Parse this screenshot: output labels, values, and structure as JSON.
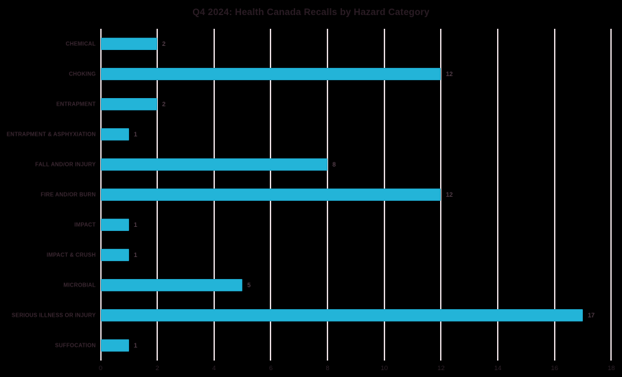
{
  "chart_data": {
    "type": "bar",
    "orientation": "horizontal",
    "title": "Q4 2024: Health Canada Recalls by Hazard Category",
    "categories": [
      "CHEMICAL",
      "CHOKING",
      "ENTRAPMENT",
      "ENTRAPMENT & ASPHYXIATION",
      "FALL AND/OR INJURY",
      "FIRE AND/OR BURN",
      "IMPACT",
      "IMPACT & CRUSH",
      "MICROBIAL",
      "SERIOUS ILLNESS OR INJURY",
      "SUFFOCATION"
    ],
    "values": [
      2,
      12,
      2,
      1,
      8,
      12,
      1,
      1,
      5,
      17,
      1
    ],
    "data_labels": [
      "2",
      "12",
      "2",
      "1",
      "8",
      "12",
      "1",
      "1",
      "5",
      "17",
      "1"
    ],
    "xlabel": "",
    "ylabel": "",
    "xlim": [
      0,
      18
    ],
    "x_ticks": [
      0,
      2,
      4,
      6,
      8,
      10,
      12,
      14,
      16,
      18
    ],
    "grid": "vertical-only",
    "legend": false,
    "colors": {
      "background": "#000000",
      "bar_fill": "#23b4d8",
      "bar_border": "#1b9fc2",
      "gridline": "#e6dade",
      "title_text": "#2a1c24",
      "category_text": "#3a2731",
      "value_text": "#4f3b46",
      "tick_text": "#2e2129"
    }
  }
}
